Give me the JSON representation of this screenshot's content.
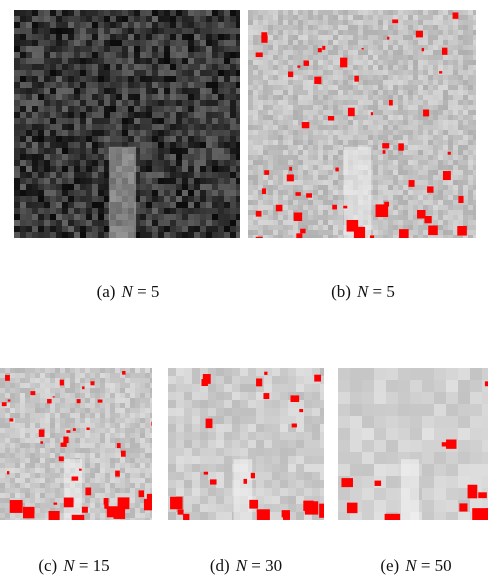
{
  "figure": {
    "panels": [
      {
        "label": "(a)",
        "variable": "N",
        "value": "5",
        "kind": "original-satellite"
      },
      {
        "label": "(b)",
        "variable": "N",
        "value": "5",
        "kind": "segmented-highlighted"
      },
      {
        "label": "(c)",
        "variable": "N",
        "value": "15",
        "kind": "segmented-highlighted"
      },
      {
        "label": "(d)",
        "variable": "N",
        "value": "30",
        "kind": "segmented-highlighted"
      },
      {
        "label": "(e)",
        "variable": "N",
        "value": "50",
        "kind": "segmented-highlighted"
      }
    ],
    "highlight_color": "#ff0000"
  }
}
